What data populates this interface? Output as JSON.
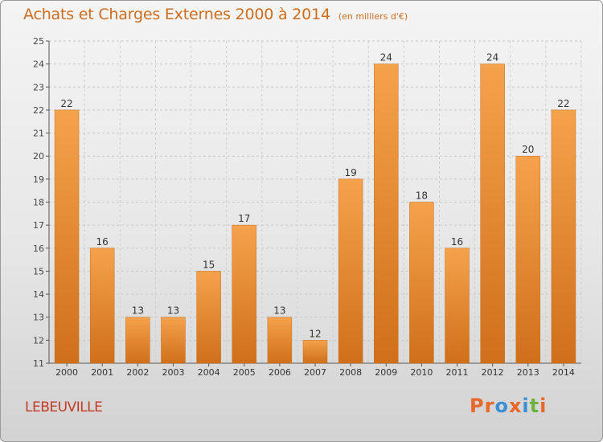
{
  "chart_data": {
    "type": "bar",
    "title": "Achats et Charges Externes 2000 à 2014",
    "subtitle": "(en milliers d'€)",
    "categories": [
      "2000",
      "2001",
      "2002",
      "2003",
      "2004",
      "2005",
      "2006",
      "2007",
      "2008",
      "2009",
      "2010",
      "2011",
      "2012",
      "2013",
      "2014"
    ],
    "values": [
      22,
      16,
      13,
      13,
      15,
      17,
      13,
      12,
      19,
      24,
      18,
      16,
      24,
      20,
      22
    ],
    "ylim": [
      11,
      25
    ],
    "yticks": [
      11,
      12,
      13,
      14,
      15,
      16,
      17,
      18,
      19,
      20,
      21,
      22,
      23,
      24,
      25
    ],
    "grid": true,
    "bar_color": "#f0953a",
    "bar_color_dark": "#d07018"
  },
  "commune": "LEBEUVILLE",
  "logo": {
    "letters": [
      "P",
      "r",
      "o",
      "x",
      "i",
      "t",
      "i"
    ],
    "colors": [
      "#e8682a",
      "#e8682a",
      "#3c8fd3",
      "#e8682a",
      "#3c8fd3",
      "#6cb33f",
      "#e8682a"
    ]
  },
  "colors": {
    "title": "#cc6d1f",
    "commune": "#c43a24"
  }
}
